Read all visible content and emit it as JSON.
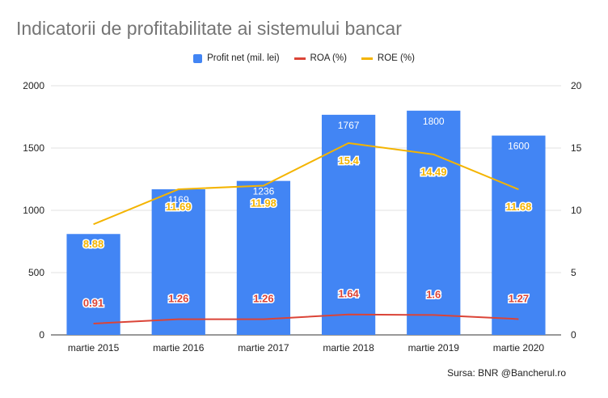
{
  "title": "Indicatorii de profitabilitate ai sistemului bancar",
  "source": "Sursa: BNR @Bancherul.ro",
  "legend": {
    "profit": "Profit net (mil. lei)",
    "roa": "ROA (%)",
    "roe": "ROE (%)"
  },
  "colors": {
    "bar": "#4285f4",
    "roa": "#db4437",
    "roe": "#f4b400",
    "grid": "#e0e0e0",
    "axis_text": "#222222",
    "title": "#757575"
  },
  "chart_data": {
    "type": "bar",
    "categories": [
      "martie 2015",
      "martie 2016",
      "martie 2017",
      "martie 2018",
      "martie 2019",
      "martie 2020"
    ],
    "series": [
      {
        "name": "Profit net (mil. lei)",
        "type": "bar",
        "axis": "left",
        "values": [
          810,
          1169,
          1236,
          1767,
          1800,
          1600
        ],
        "labels": [
          "",
          "1169",
          "1236",
          "1767",
          "1800",
          "1600"
        ]
      },
      {
        "name": "ROA (%)",
        "type": "line",
        "axis": "right",
        "values": [
          0.91,
          1.26,
          1.26,
          1.64,
          1.6,
          1.27
        ],
        "labels": [
          "0.91",
          "1.26",
          "1.26",
          "1.64",
          "1.6",
          "1.27"
        ]
      },
      {
        "name": "ROE (%)",
        "type": "line",
        "axis": "right",
        "values": [
          8.88,
          11.69,
          11.98,
          15.4,
          14.49,
          11.68
        ],
        "labels": [
          "8.88",
          "11.69",
          "11.98",
          "15.4",
          "14.49",
          "11.68"
        ]
      }
    ],
    "left_axis": {
      "min": 0,
      "max": 2000,
      "ticks": [
        "0",
        "500",
        "1000",
        "1500",
        "2000"
      ]
    },
    "right_axis": {
      "min": 0,
      "max": 20,
      "ticks": [
        "0",
        "5",
        "10",
        "15",
        "20"
      ]
    },
    "grid": true,
    "legend_position": "top"
  }
}
